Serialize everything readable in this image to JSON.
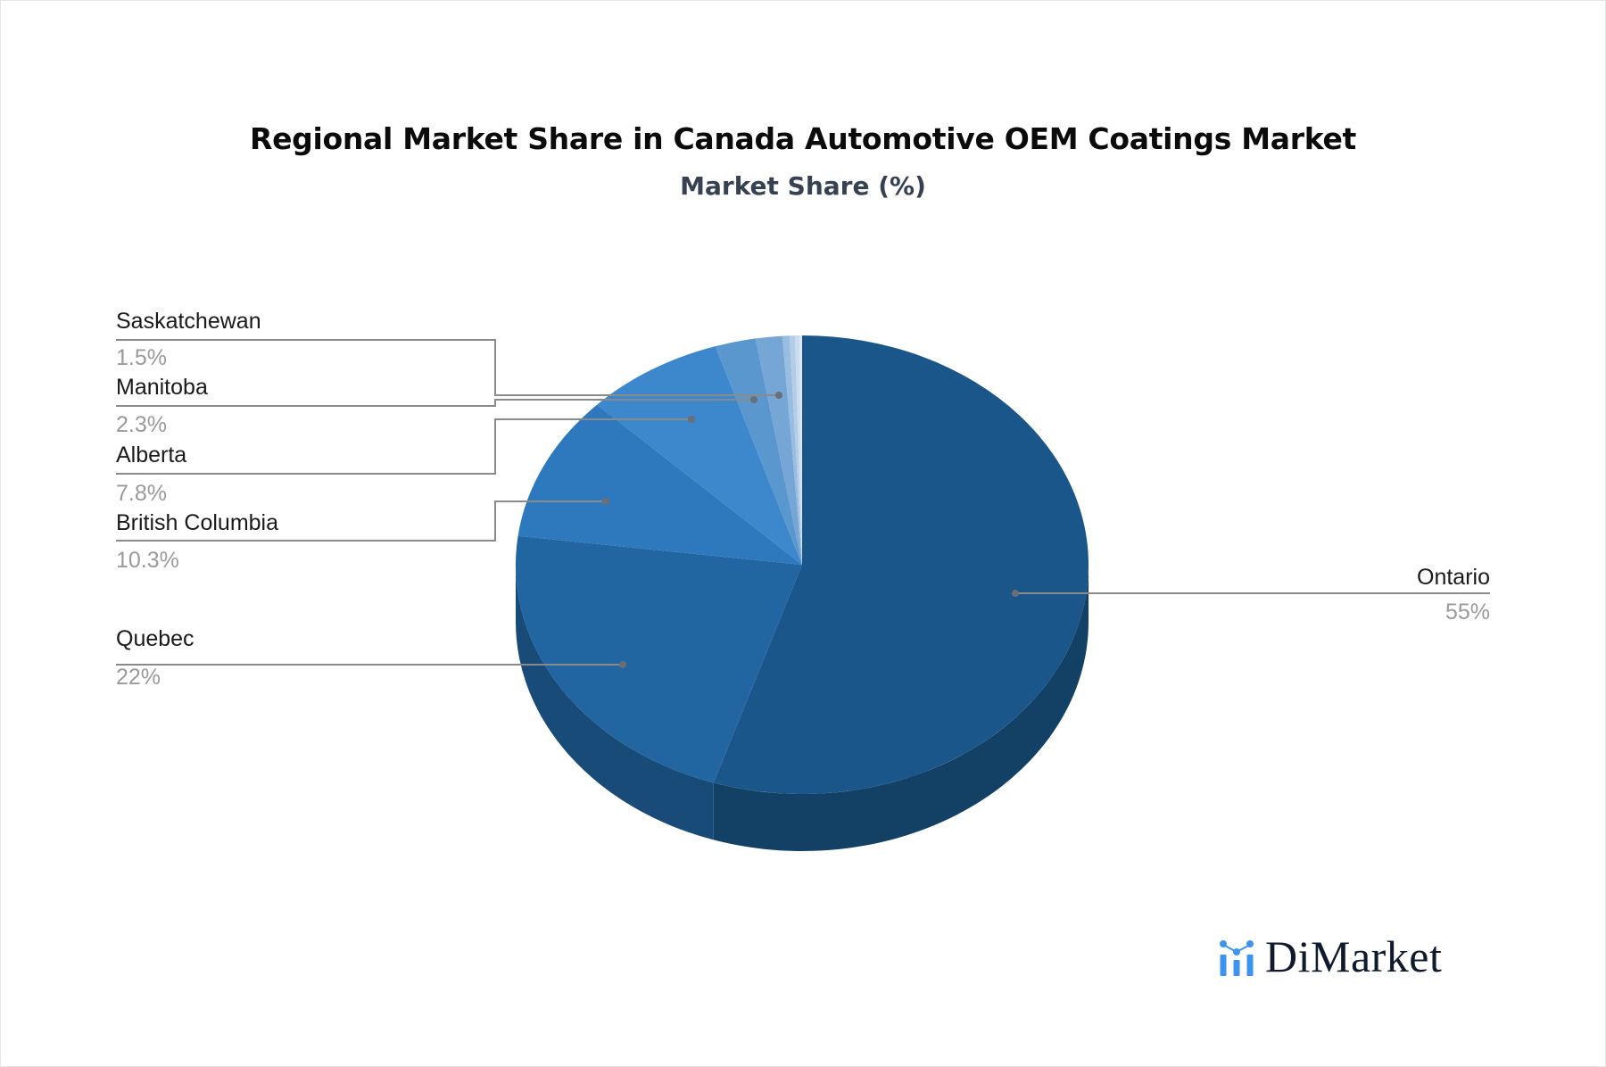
{
  "header": {
    "title": "Regional Market Share in Canada Automotive OEM Coatings Market",
    "subtitle": "Market Share (%)"
  },
  "brand": {
    "name": "DiMarket",
    "icon": "bar-chart-logo-icon",
    "icon_color": "#3d94ee",
    "text_color": "#0f1b2d"
  },
  "chart_data": {
    "type": "pie",
    "style": "3d-pie",
    "title": "Regional Market Share in Canada Automotive OEM Coatings Market",
    "subtitle": "Market Share (%)",
    "unit": "%",
    "categories": [
      "Ontario",
      "Quebec",
      "British Columbia",
      "Alberta",
      "Manitoba",
      "Saskatchewan"
    ],
    "values": [
      55,
      22,
      10.3,
      7.8,
      2.3,
      1.5
    ],
    "labels": [
      "55%",
      "22%",
      "10.3%",
      "7.8%",
      "2.3%",
      "1.5%"
    ],
    "colors": [
      "#1a5689",
      "#2166a1",
      "#2e78bd",
      "#3d88cc",
      "#5b97cf",
      "#76a6d6"
    ],
    "unlabeled_remainder_slices": [
      {
        "value": 0.4,
        "color": "#98bde0"
      },
      {
        "value": 0.3,
        "color": "#b3cde7"
      },
      {
        "value": 0.25,
        "color": "#cbdcee"
      },
      {
        "value": 0.15,
        "color": "#dde8f4"
      }
    ],
    "legend": "none (callout labels)"
  }
}
